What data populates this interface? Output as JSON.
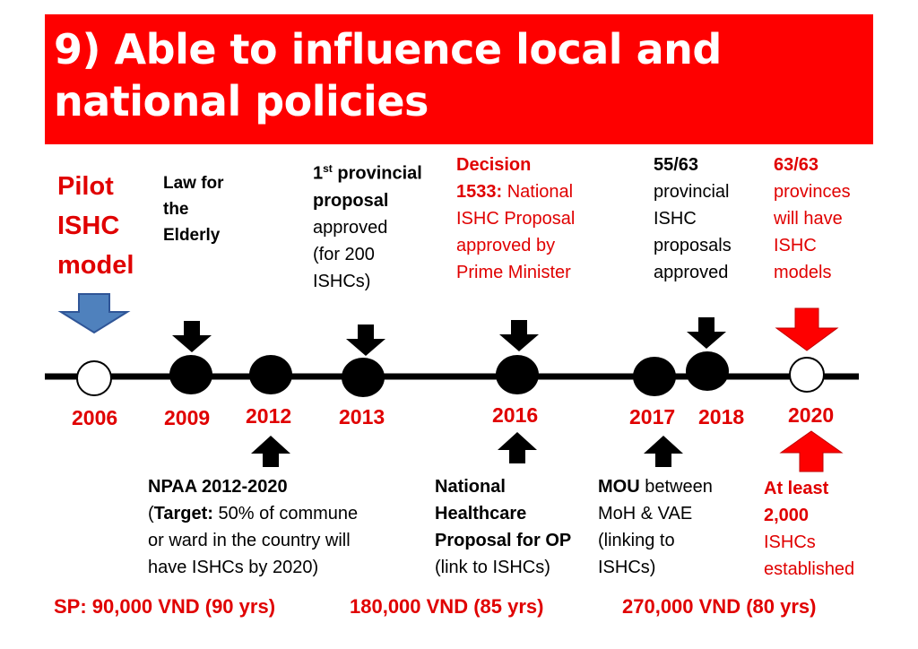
{
  "title": "9) Able to influence local and national policies",
  "colors": {
    "accent": "#fe0000",
    "text_red": "#e00000",
    "arrow_blue": "#4f81bd",
    "dot": "#000000"
  },
  "above": {
    "pilot": [
      "Pilot",
      "ISHC",
      "model"
    ],
    "law": [
      "Law for",
      "the",
      "Elderly"
    ],
    "provincial": {
      "line1_pre": "1",
      "line1_sup": "st",
      "line1_post": " provincial",
      "line2": "proposal",
      "line3": "approved",
      "line4": "(for 200",
      "line5": "ISHCs)"
    },
    "decision": {
      "line1": "Decision",
      "line2_bold": "1533:",
      "line2_rest": " National",
      "line3": "ISHC Proposal",
      "line4": "approved by",
      "line5": "Prime Minister"
    },
    "fiftyfive": [
      "55/63",
      "provincial",
      "ISHC",
      "proposals",
      "approved"
    ],
    "sixtythree": [
      "63/63",
      "provinces",
      "will have",
      "ISHC",
      "models"
    ]
  },
  "years": [
    "2006",
    "2009",
    "2012",
    "2013",
    "2016",
    "2017",
    "2018",
    "2020"
  ],
  "below": {
    "npaa": {
      "line1": "NPAA 2012-2020",
      "line2_pre": "(",
      "line2_bold": "Target:",
      "line2_rest": " 50% of commune",
      "line3": "or ward in the country will",
      "line4": "have ISHCs by 2020)"
    },
    "healthcare": [
      "National",
      "Healthcare",
      "Proposal for OP",
      "(link to ISHCs)"
    ],
    "mou": {
      "line1_bold": "MOU",
      "line1_rest": " between",
      "line2": "MoH & VAE",
      "line3": "(linking to",
      "line4": "ISHCs)"
    },
    "atleast": [
      "At least",
      "2,000",
      "ISHCs",
      "established"
    ]
  },
  "sp": [
    "SP: 90,000 VND (90 yrs)",
    "180,000 VND (85 yrs)",
    "270,000 VND (80 yrs)"
  ]
}
